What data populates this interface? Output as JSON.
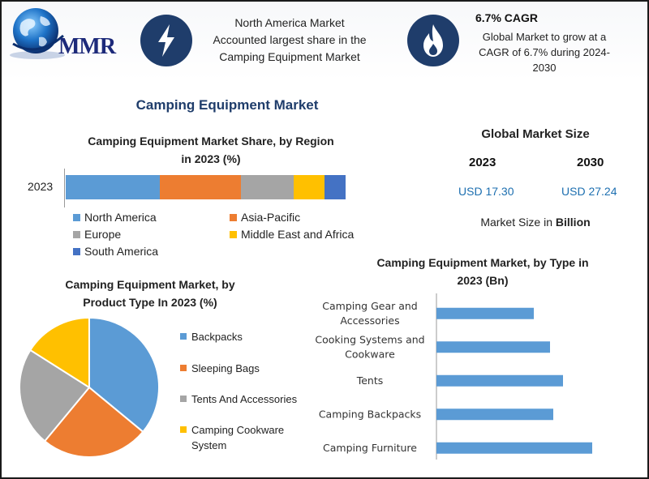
{
  "header": {
    "logo_text": "MMR",
    "highlight_1": [
      "North America Market",
      "Accounted largest share in the",
      "Camping Equipment Market"
    ],
    "cagr_title": "6.7% CAGR",
    "cagr_text": [
      "Global Market to grow at a",
      "CAGR of 6.7% during 2024-",
      "2030"
    ],
    "icon_1": "lightning-icon",
    "icon_2": "flame-icon"
  },
  "main_title": "Camping Equipment Market",
  "global_market_size": {
    "title": "Global Market Size",
    "year_1": "2023",
    "year_2": "2030",
    "value_1": "USD 17.30",
    "value_2": "USD 27.24",
    "unit_prefix": "Market Size in",
    "unit_word": "Billion"
  },
  "colors": {
    "north_america": "#5b9bd5",
    "asia_pacific": "#ed7d31",
    "europe": "#a5a5a5",
    "mea": "#ffc000",
    "south_america": "#4472c4",
    "icon_bg": "#1f3d6b",
    "value_text": "#1d6fb0"
  },
  "chart_data": [
    {
      "type": "bar",
      "orientation": "horizontal-stacked",
      "title_lines": [
        "Camping Equipment Market Share, by Region",
        "in 2023 (%)"
      ],
      "categories": [
        "2023"
      ],
      "series": [
        {
          "name": "North America",
          "values": [
            33.5
          ]
        },
        {
          "name": "Asia-Pacific",
          "values": [
            29
          ]
        },
        {
          "name": "Europe",
          "values": [
            19
          ]
        },
        {
          "name": "Middle East and Africa",
          "values": [
            11
          ]
        },
        {
          "name": "South America",
          "values": [
            7.5
          ]
        }
      ],
      "legend": "bottom"
    },
    {
      "type": "pie",
      "title_lines": [
        "Camping Equipment Market, by",
        "Product Type In 2023 (%)"
      ],
      "slices": [
        {
          "name": "Backpacks",
          "value": 36
        },
        {
          "name": "Sleeping Bags",
          "value": 25
        },
        {
          "name": "Tents And Accessories",
          "value": 23
        },
        {
          "name": "Camping Cookware System",
          "value": 16
        }
      ],
      "legend_lines": [
        [
          "Backpacks"
        ],
        [
          "Sleeping Bags"
        ],
        [
          "Tents And Accessories"
        ],
        [
          "Camping Cookware",
          "System"
        ]
      ],
      "legend": "right"
    },
    {
      "type": "bar",
      "orientation": "horizontal",
      "title_lines": [
        "Camping Equipment Market, by Type in",
        "2023 (Bn)"
      ],
      "categories": [
        [
          "Camping Gear and",
          "Accessories"
        ],
        [
          "Cooking Systems and",
          "Cookware"
        ],
        [
          "Tents"
        ],
        [
          "Camping Backpacks"
        ],
        [
          "Camping Furniture"
        ]
      ],
      "values": [
        3.0,
        3.5,
        3.9,
        3.6,
        4.8
      ],
      "xlim": [
        0,
        6
      ],
      "grid": false
    }
  ]
}
